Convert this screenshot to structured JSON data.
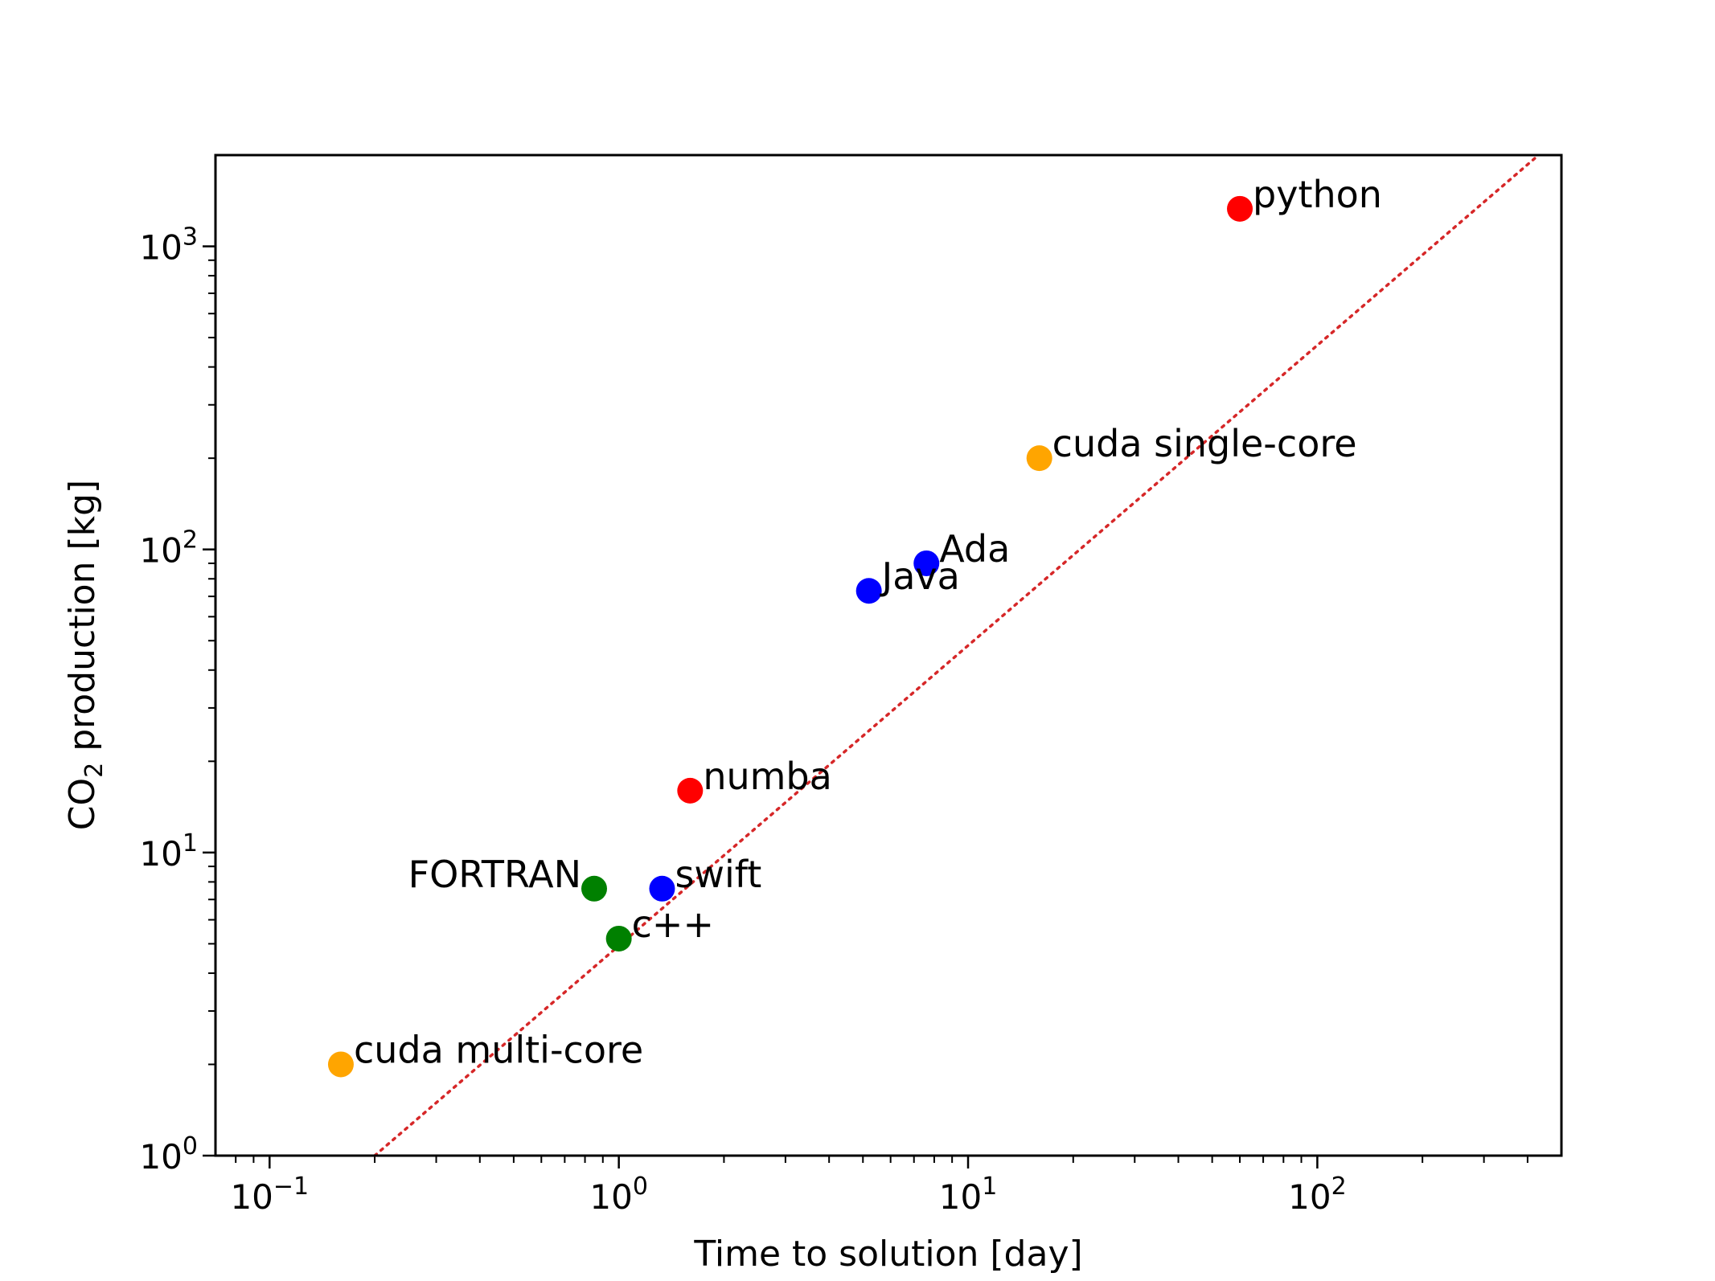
{
  "chart_data": {
    "type": "scatter",
    "title": "",
    "xlabel": "Time to solution [day]",
    "ylabel_parts": {
      "pre": "CO",
      "sub": "2",
      "post": " production [kg]"
    },
    "xscale": "log",
    "yscale": "log",
    "xlim": [
      0.07,
      500
    ],
    "ylim": [
      1,
      2000
    ],
    "grid": false,
    "legend": "none",
    "x_major_ticks": [
      {
        "value": 0.1,
        "base": "10",
        "exp": "−1"
      },
      {
        "value": 1,
        "base": "10",
        "exp": "0"
      },
      {
        "value": 10,
        "base": "10",
        "exp": "1"
      },
      {
        "value": 100,
        "base": "10",
        "exp": "2"
      }
    ],
    "y_major_ticks": [
      {
        "value": 1,
        "base": "10",
        "exp": "0"
      },
      {
        "value": 10,
        "base": "10",
        "exp": "1"
      },
      {
        "value": 100,
        "base": "10",
        "exp": "2"
      },
      {
        "value": 1000,
        "base": "10",
        "exp": "3"
      }
    ],
    "points": [
      {
        "label": "python",
        "x": 60,
        "y": 1330,
        "color": "#ff0000",
        "label_side": "right"
      },
      {
        "label": "cuda single-core",
        "x": 16,
        "y": 200,
        "color": "#ffa500",
        "label_side": "right"
      },
      {
        "label": "Ada",
        "x": 7.6,
        "y": 90,
        "color": "#0000ff",
        "label_side": "right"
      },
      {
        "label": "Java",
        "x": 5.2,
        "y": 73,
        "color": "#0000ff",
        "label_side": "right"
      },
      {
        "label": "numba",
        "x": 1.6,
        "y": 16,
        "color": "#ff0000",
        "label_side": "right"
      },
      {
        "label": "FORTRAN",
        "x": 0.85,
        "y": 7.6,
        "color": "#008000",
        "label_side": "left"
      },
      {
        "label": "swift",
        "x": 1.33,
        "y": 7.6,
        "color": "#0000ff",
        "label_side": "right"
      },
      {
        "label": "c++",
        "x": 1.0,
        "y": 5.2,
        "color": "#008000",
        "label_side": "right"
      },
      {
        "label": "cuda multi-core",
        "x": 0.16,
        "y": 2.0,
        "color": "#ffa500",
        "label_side": "right"
      }
    ],
    "reference_line": {
      "style": "dotted",
      "color": "#d62728",
      "from": {
        "x": 0.2,
        "y": 1
      },
      "to": {
        "x": 430,
        "y": 2000
      }
    }
  }
}
